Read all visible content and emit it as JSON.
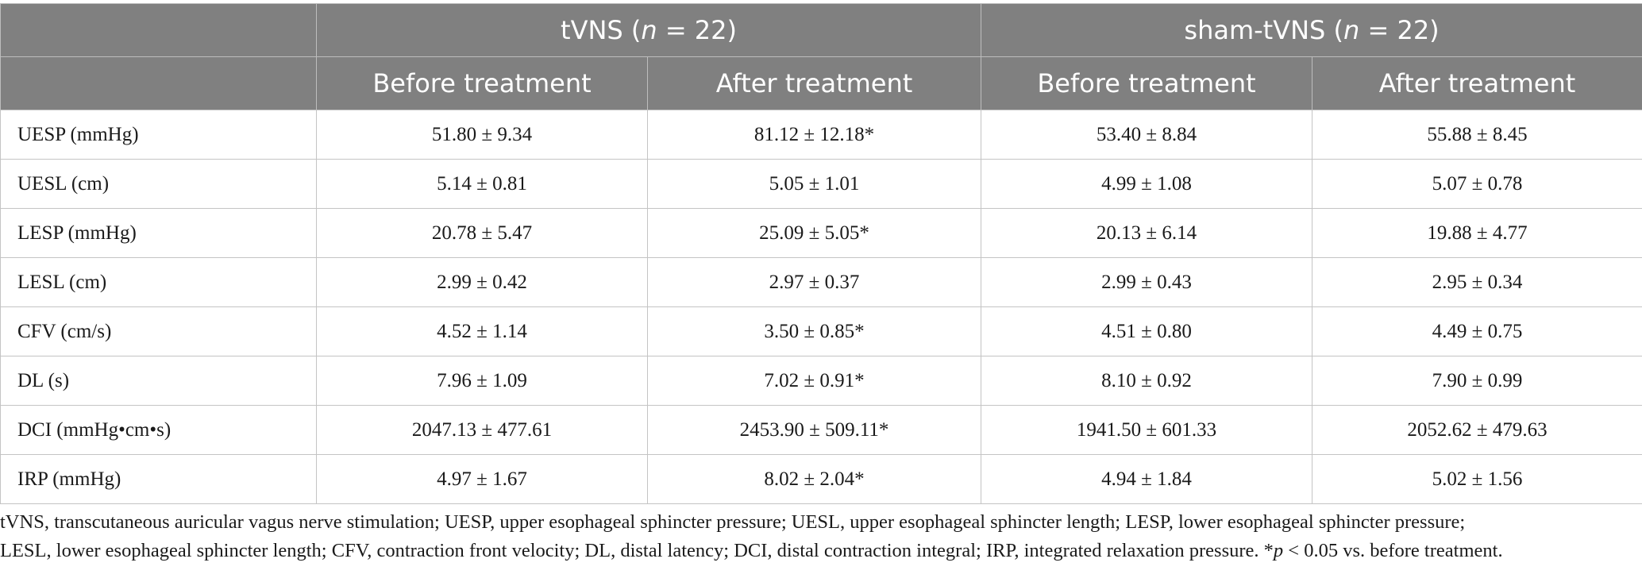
{
  "header": {
    "groups": [
      {
        "name": "tVNS",
        "n_label": "n",
        "n_value": "= 22"
      },
      {
        "name": "sham-tVNS",
        "n_label": "n",
        "n_value": "= 22"
      }
    ],
    "subheaders": [
      "Before treatment",
      "After treatment",
      "Before treatment",
      "After treatment"
    ]
  },
  "rows": [
    {
      "label": "UESP (mmHg)",
      "values": [
        "51.80 ± 9.34",
        "81.12 ± 12.18*",
        "53.40 ± 8.84",
        "55.88 ± 8.45"
      ]
    },
    {
      "label": "UESL (cm)",
      "values": [
        "5.14 ± 0.81",
        "5.05 ± 1.01",
        "4.99 ± 1.08",
        "5.07 ± 0.78"
      ]
    },
    {
      "label": "LESP (mmHg)",
      "values": [
        "20.78 ± 5.47",
        "25.09 ± 5.05*",
        "20.13 ± 6.14",
        "19.88 ± 4.77"
      ]
    },
    {
      "label": "LESL (cm)",
      "values": [
        "2.99 ± 0.42",
        "2.97 ± 0.37",
        "2.99 ± 0.43",
        "2.95 ± 0.34"
      ]
    },
    {
      "label": "CFV (cm/s)",
      "values": [
        "4.52 ± 1.14",
        "3.50 ± 0.85*",
        "4.51 ± 0.80",
        "4.49 ± 0.75"
      ]
    },
    {
      "label": "DL (s)",
      "values": [
        "7.96 ± 1.09",
        "7.02 ± 0.91*",
        "8.10 ± 0.92",
        "7.90 ± 0.99"
      ]
    },
    {
      "label": "DCI (mmHg•cm•s)",
      "values": [
        "2047.13 ± 477.61",
        "2453.90 ± 509.11*",
        "1941.50 ± 601.33",
        "2052.62 ± 479.63"
      ]
    },
    {
      "label": "IRP (mmHg)",
      "values": [
        "4.97 ± 1.67",
        "8.02 ± 2.04*",
        "4.94 ± 1.84",
        "5.02 ± 1.56"
      ]
    }
  ],
  "footnote": {
    "line1": "tVNS, transcutaneous auricular vagus nerve stimulation; UESP, upper esophageal sphincter pressure; UESL, upper esophageal sphincter length; LESP, lower esophageal sphincter pressure;",
    "line2_prefix": "LESL, lower esophageal sphincter length; CFV, contraction front velocity; DL, distal latency; DCI, distal contraction integral; IRP, integrated relaxation pressure. *",
    "line2_p": "p",
    "line2_suffix": " < 0.05 vs. before treatment."
  }
}
